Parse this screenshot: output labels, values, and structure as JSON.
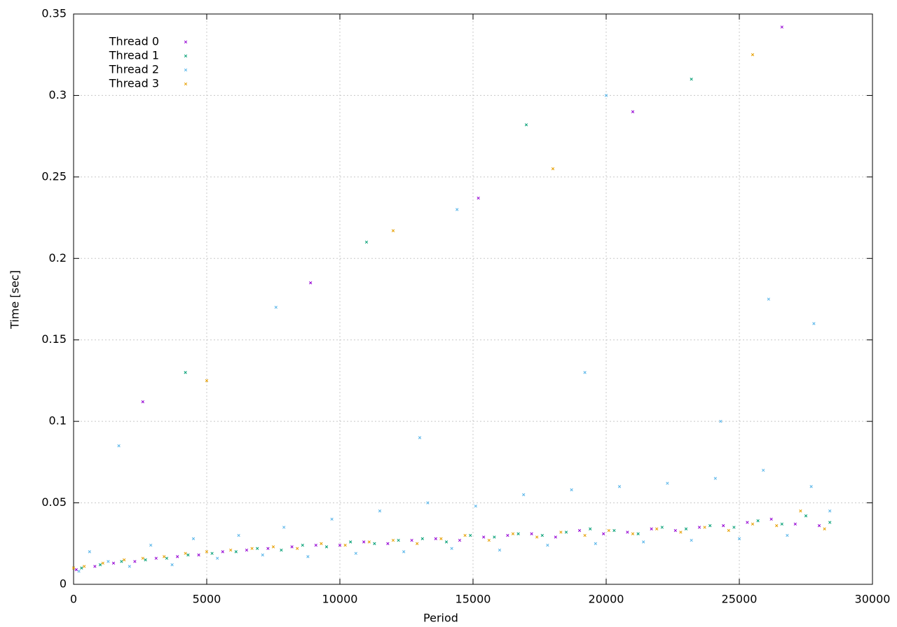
{
  "chart_data": {
    "type": "scatter",
    "x_label": "Period",
    "y_label": "Time [sec]",
    "xlim": [
      0,
      30000
    ],
    "xticks": [
      0,
      5000,
      10000,
      15000,
      20000,
      25000,
      30000
    ],
    "ylim": [
      0,
      0.35
    ],
    "yticks": [
      0,
      0.05,
      0.1,
      0.15,
      0.2,
      0.25,
      0.3,
      0.35
    ],
    "grid": true,
    "legend": "top-left",
    "series": [
      {
        "name": "Thread 0",
        "color": "#9400d3",
        "x": [
          100,
          800,
          1500,
          2300,
          3100,
          3900,
          4700,
          5600,
          6500,
          7300,
          8200,
          9100,
          10000,
          10900,
          11800,
          12700,
          13600,
          14500,
          15400,
          16300,
          17200,
          18100,
          19000,
          19900,
          20800,
          21700,
          22600,
          23500,
          24400,
          25300,
          26200,
          27100,
          28000,
          2600,
          8900,
          15200,
          21000,
          26600
        ],
        "values": [
          0.009,
          0.011,
          0.013,
          0.014,
          0.016,
          0.017,
          0.018,
          0.02,
          0.021,
          0.022,
          0.023,
          0.024,
          0.024,
          0.026,
          0.025,
          0.027,
          0.028,
          0.027,
          0.029,
          0.03,
          0.031,
          0.029,
          0.033,
          0.031,
          0.032,
          0.034,
          0.033,
          0.035,
          0.036,
          0.038,
          0.04,
          0.037,
          0.036,
          0.112,
          0.185,
          0.237,
          0.29,
          0.342
        ]
      },
      {
        "name": "Thread 1",
        "color": "#009e73",
        "x": [
          300,
          1000,
          1800,
          2700,
          3500,
          4300,
          5200,
          6100,
          6900,
          7800,
          8600,
          9500,
          10400,
          11300,
          12200,
          13100,
          14000,
          14900,
          15800,
          16700,
          17600,
          18500,
          19400,
          20300,
          21200,
          22100,
          23000,
          23900,
          24800,
          25700,
          26600,
          27500,
          28400,
          4200,
          11000,
          17000,
          23200
        ],
        "values": [
          0.01,
          0.012,
          0.014,
          0.015,
          0.016,
          0.018,
          0.019,
          0.02,
          0.022,
          0.021,
          0.024,
          0.023,
          0.026,
          0.025,
          0.027,
          0.028,
          0.026,
          0.03,
          0.029,
          0.031,
          0.03,
          0.032,
          0.034,
          0.033,
          0.031,
          0.035,
          0.034,
          0.036,
          0.035,
          0.039,
          0.037,
          0.042,
          0.038,
          0.13,
          0.21,
          0.282,
          0.31
        ]
      },
      {
        "name": "Thread 2",
        "color": "#56b4e9",
        "x": [
          200,
          600,
          1300,
          2100,
          2900,
          3700,
          4500,
          5400,
          6200,
          7100,
          7900,
          8800,
          9700,
          10600,
          11500,
          12400,
          13300,
          14200,
          15100,
          16000,
          16900,
          17800,
          18700,
          19600,
          20500,
          21400,
          22300,
          23200,
          24100,
          25000,
          25900,
          26800,
          27700,
          28400,
          13000,
          19200,
          24300,
          26100,
          27800,
          1700,
          7600,
          14400,
          20000
        ],
        "values": [
          0.008,
          0.02,
          0.014,
          0.011,
          0.024,
          0.012,
          0.028,
          0.016,
          0.03,
          0.018,
          0.035,
          0.017,
          0.04,
          0.019,
          0.045,
          0.02,
          0.05,
          0.022,
          0.048,
          0.021,
          0.055,
          0.024,
          0.058,
          0.025,
          0.06,
          0.026,
          0.062,
          0.027,
          0.065,
          0.028,
          0.07,
          0.03,
          0.06,
          0.045,
          0.09,
          0.13,
          0.1,
          0.175,
          0.16,
          0.085,
          0.17,
          0.23,
          0.3
        ]
      },
      {
        "name": "Thread 3",
        "color": "#e69f00",
        "x": [
          0,
          400,
          1100,
          1900,
          2600,
          3400,
          4200,
          5000,
          5900,
          6700,
          7500,
          8400,
          9300,
          10200,
          11100,
          12000,
          12900,
          13800,
          14700,
          15600,
          16500,
          17400,
          18300,
          19200,
          20100,
          21000,
          21900,
          22800,
          23700,
          24600,
          25500,
          26400,
          27300,
          28200,
          5000,
          12000,
          18000,
          25500
        ],
        "values": [
          0.01,
          0.011,
          0.013,
          0.015,
          0.016,
          0.017,
          0.019,
          0.02,
          0.021,
          0.022,
          0.023,
          0.022,
          0.025,
          0.024,
          0.026,
          0.027,
          0.025,
          0.028,
          0.03,
          0.027,
          0.031,
          0.029,
          0.032,
          0.03,
          0.033,
          0.031,
          0.034,
          0.032,
          0.035,
          0.033,
          0.037,
          0.036,
          0.045,
          0.034,
          0.125,
          0.217,
          0.255,
          0.325
        ]
      }
    ]
  }
}
